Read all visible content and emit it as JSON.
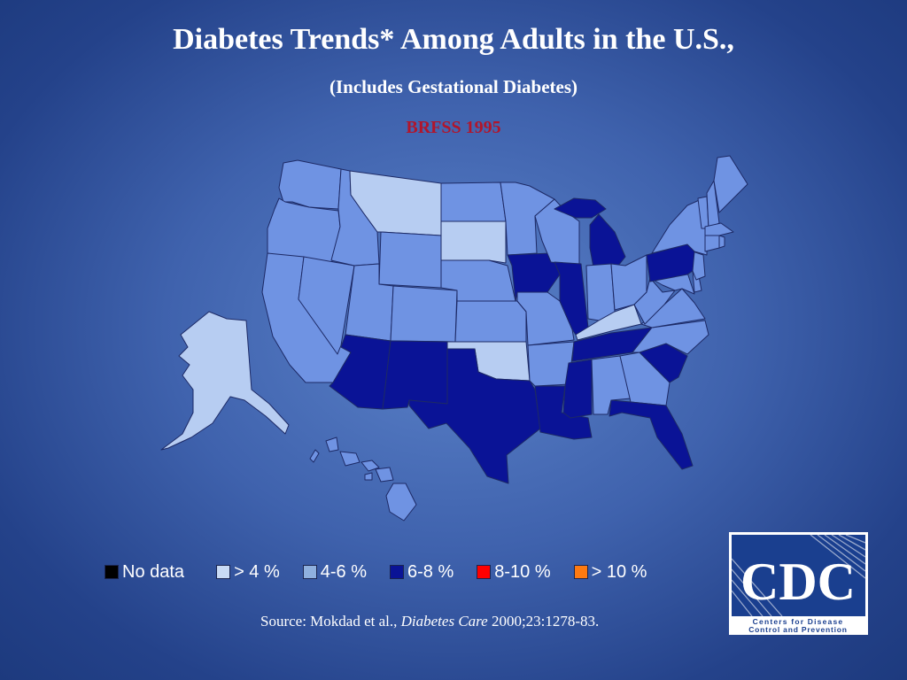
{
  "slide": {
    "title": "Diabetes Trends* Among Adults in the U.S.,",
    "subtitle": "(Includes Gestational Diabetes)",
    "survey_year": "BRFSS 1995"
  },
  "colors": {
    "lt4": "#b7cdf2",
    "4to6": "#6f93e3",
    "6to8": "#0a1396",
    "no_data": "#000000",
    "8to10": "#ff0000",
    "gt10": "#ff7a10",
    "border": "#1d2a66"
  },
  "legend": [
    {
      "label": "No data",
      "color": "#000000"
    },
    {
      "label": "> 4 %",
      "color": "#c9dbf5"
    },
    {
      "label": "4-6 %",
      "color": "#8fb0de"
    },
    {
      "label": "6-8 %",
      "color": "#0a1396"
    },
    {
      "label": "8-10 %",
      "color": "#ff0000"
    },
    {
      "label": "> 10 %",
      "color": "#ff7a10"
    }
  ],
  "map": {
    "category_by_state": {
      "WA": "4to6",
      "OR": "4to6",
      "CA": "4to6",
      "NV": "4to6",
      "ID": "4to6",
      "MT": "lt4",
      "WY": "4to6",
      "UT": "4to6",
      "CO": "4to6",
      "AZ": "6to8",
      "NM": "6to8",
      "ND": "4to6",
      "SD": "lt4",
      "NE": "4to6",
      "KS": "4to6",
      "OK": "lt4",
      "TX": "6to8",
      "MN": "4to6",
      "IA": "6to8",
      "MO": "4to6",
      "AR": "4to6",
      "LA": "6to8",
      "WI": "4to6",
      "IL": "6to8",
      "MS": "6to8",
      "MI": "6to8",
      "IN": "4to6",
      "KY": "lt4",
      "TN": "6to8",
      "AL": "4to6",
      "OH": "4to6",
      "WV": "4to6",
      "GA": "4to6",
      "FL": "6to8",
      "SC": "6to8",
      "NC": "4to6",
      "VA": "4to6",
      "PA": "6to8",
      "NY": "4to6",
      "ME": "4to6",
      "NH": "4to6",
      "VT": "4to6",
      "MA": "4to6",
      "CT": "4to6",
      "RI": "4to6",
      "NJ": "4to6",
      "DE": "4to6",
      "MD": "4to6",
      "AK": "lt4",
      "HI": "4to6"
    }
  },
  "source": {
    "prefix": "Source: Mokdad et al., ",
    "journal": "Diabetes Care",
    "citation": " 2000;23:1278-83."
  },
  "logo": {
    "text": "CDC",
    "line1": "Centers for Disease",
    "line2": "Control and Prevention"
  }
}
